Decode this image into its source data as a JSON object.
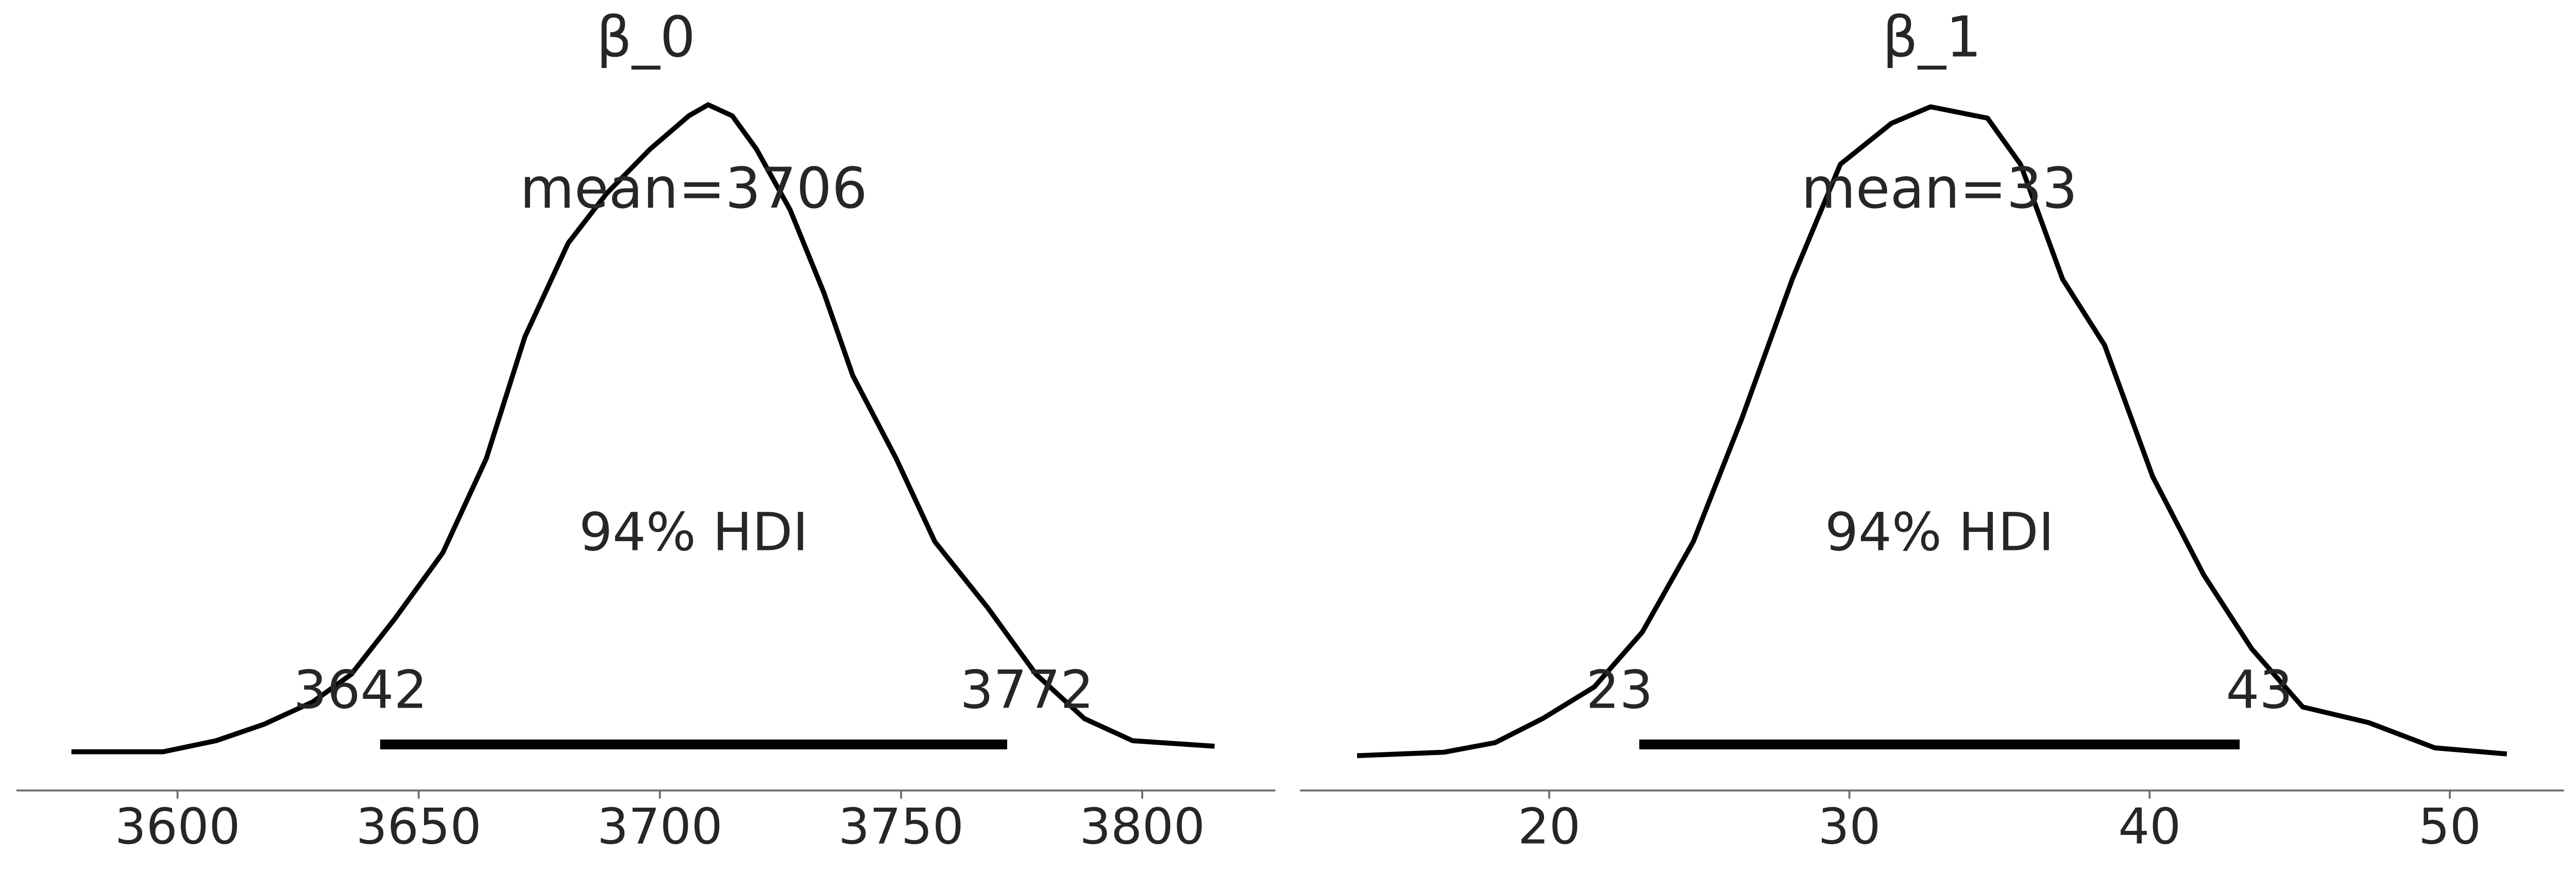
{
  "chart_data": [
    {
      "type": "density",
      "title": "β_0",
      "mean_label": "mean=3706",
      "hdi_label": "94% HDI",
      "hdi": [
        3642,
        3772
      ],
      "color": "#000000",
      "x": [
        3578,
        3597,
        3608,
        3618,
        3628,
        3636,
        3645,
        3655,
        3664,
        3672,
        3681,
        3689,
        3698,
        3706,
        3710,
        3715,
        3720,
        3727,
        3734,
        3740,
        3749,
        3757,
        3768,
        3778,
        3788,
        3798,
        3815
      ],
      "values": [
        0.0001,
        0.0001,
        0.0003,
        0.0006,
        0.001,
        0.0015,
        0.0025,
        0.0037,
        0.0054,
        0.0076,
        0.0093,
        0.0102,
        0.011,
        0.0116,
        0.0118,
        0.0116,
        0.011,
        0.0099,
        0.0084,
        0.0069,
        0.0054,
        0.0039,
        0.0027,
        0.0015,
        0.0007,
        0.0003,
        0.0002
      ],
      "xlim": [
        3566.6,
        3827.6
      ],
      "ylim": [
        -0.0006,
        0.0131
      ],
      "xticks": [
        3600,
        3650,
        3700,
        3750,
        3800
      ]
    },
    {
      "type": "density",
      "title": "β_1",
      "mean_label": "mean=33",
      "hdi_label": "94% HDI",
      "hdi": [
        23,
        43
      ],
      "color": "#000000",
      "x": [
        13.6,
        16.5,
        18.2,
        19.8,
        21.5,
        23.1,
        24.8,
        26.4,
        28.1,
        29.7,
        31.4,
        32.7,
        34.6,
        35.7,
        37.1,
        38.5,
        40.1,
        41.8,
        43.4,
        45.1,
        47.3,
        49.5,
        51.9
      ],
      "values": [
        0.0004,
        0.0008,
        0.0019,
        0.0047,
        0.0083,
        0.0146,
        0.025,
        0.039,
        0.0552,
        0.0684,
        0.0731,
        0.075,
        0.0737,
        0.0684,
        0.0552,
        0.0476,
        0.0325,
        0.0212,
        0.0127,
        0.006,
        0.0042,
        0.0013,
        0.0006
      ],
      "xlim": [
        11.7,
        53.8
      ],
      "ylim": [
        -0.0036,
        0.0835
      ],
      "xticks": [
        20,
        30,
        40,
        50
      ]
    }
  ]
}
